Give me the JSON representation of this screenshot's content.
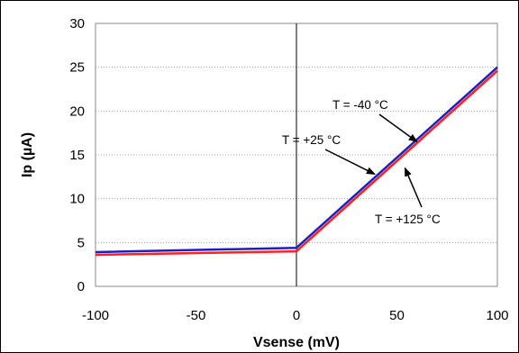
{
  "chart_data": {
    "type": "line",
    "title": "",
    "xlabel": "Vsense (mV)",
    "ylabel": "Ip (µA)",
    "xlim": [
      -100,
      100
    ],
    "ylim": [
      0,
      30
    ],
    "xticks": [
      -100,
      -50,
      0,
      50,
      100
    ],
    "yticks": [
      0,
      5,
      10,
      15,
      20,
      25,
      30
    ],
    "grid": "horizontal, dotted",
    "legend": "none",
    "series": [
      {
        "color": "#1f1fbf",
        "x": [
          -100,
          0,
          100
        ],
        "y": [
          3.9,
          4.4,
          25.0
        ]
      },
      {
        "color": "#ff2020",
        "x": [
          -100,
          0,
          100
        ],
        "y": [
          3.6,
          4.0,
          24.6
        ]
      }
    ],
    "annotations": [
      {
        "text": "T = -40 °C",
        "arrow_to": [
          60,
          16.5
        ]
      },
      {
        "text": "T = +25 °C",
        "arrow_to": [
          39,
          12.8
        ]
      },
      {
        "text": "T = +125 °C",
        "arrow_to": [
          54,
          13.5
        ]
      }
    ]
  }
}
